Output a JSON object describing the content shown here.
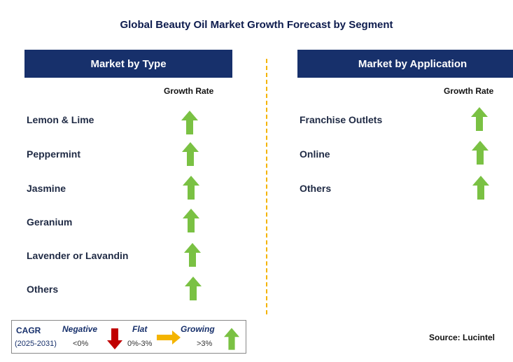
{
  "title": "Global Beauty Oil Market Growth Forecast by Segment",
  "left": {
    "header": "Market by Type",
    "growth_label": "Growth Rate",
    "items": [
      "Lemon & Lime",
      "Peppermint",
      "Jasmine",
      "Geranium",
      "Lavender or Lavandin",
      "Others"
    ]
  },
  "right": {
    "header": "Market by Application",
    "growth_label": "Growth Rate",
    "items": [
      "Franchise Outlets",
      "Online",
      "Others"
    ]
  },
  "legend": {
    "cagr": "CAGR",
    "period": "(2025-2031)",
    "negative": "Negative",
    "negative_range": "<0%",
    "flat": "Flat",
    "flat_range": "0%-3%",
    "growing": "Growing",
    "growing_range": ">3%"
  },
  "source": "Source: Lucintel",
  "colors": {
    "header_bg": "#17306b",
    "up_arrow": "#7ac143",
    "down_arrow": "#c00000",
    "flat_arrow": "#f4b400",
    "divider": "#f4b400"
  },
  "growth_status": {
    "left": [
      "growing",
      "growing",
      "growing",
      "growing",
      "growing",
      "growing"
    ],
    "right": [
      "growing",
      "growing",
      "growing"
    ]
  }
}
